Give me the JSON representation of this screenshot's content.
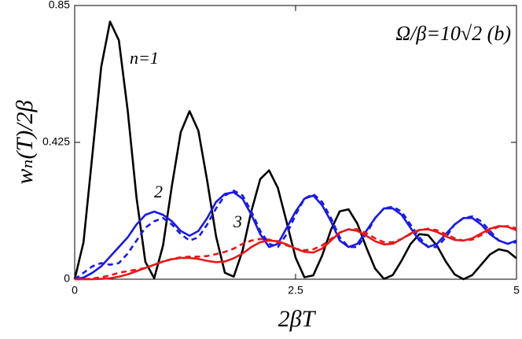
{
  "chart_data": {
    "type": "line",
    "annotation": "Ω/β=10√2  (b)",
    "xlabel": "2βT",
    "ylabel": "wₙ(T)/2β",
    "xlim": [
      0,
      5
    ],
    "ylim": [
      0,
      0.85
    ],
    "xticks": [
      0,
      2.5,
      5
    ],
    "yticks": [
      0,
      0.425,
      0.85
    ],
    "x": [
      0,
      0.1,
      0.2,
      0.3,
      0.4,
      0.5,
      0.6,
      0.7,
      0.8,
      0.9,
      1,
      1.1,
      1.2,
      1.3,
      1.4,
      1.5,
      1.6,
      1.7,
      1.8,
      1.9,
      2,
      2.1,
      2.2,
      2.3,
      2.4,
      2.5,
      2.6,
      2.7,
      2.8,
      2.9,
      3,
      3.1,
      3.2,
      3.3,
      3.4,
      3.5,
      3.6,
      3.7,
      3.8,
      3.9,
      4,
      4.1,
      4.2,
      4.3,
      4.4,
      4.5,
      4.6,
      4.7,
      4.8,
      4.9,
      5
    ],
    "series": [
      {
        "name": "n=1",
        "color": "#000000",
        "dashed": false,
        "values": [
          0,
          0.115,
          0.386,
          0.659,
          0.8,
          0.742,
          0.524,
          0.253,
          0.054,
          0.003,
          0.105,
          0.29,
          0.456,
          0.522,
          0.461,
          0.305,
          0.133,
          0.02,
          0.008,
          0.089,
          0.212,
          0.311,
          0.338,
          0.283,
          0.176,
          0.067,
          0.006,
          0.012,
          0.073,
          0.153,
          0.211,
          0.217,
          0.172,
          0.099,
          0.033,
          0.001,
          0.013,
          0.058,
          0.109,
          0.14,
          0.137,
          0.104,
          0.055,
          0.015,
          0,
          0.013,
          0.045,
          0.077,
          0.093,
          0.087,
          0.065
        ]
      },
      {
        "name": "2",
        "color": "#1a1ae6",
        "dashed": false,
        "values": [
          0,
          0.005,
          0.02,
          0.04,
          0.07,
          0.1,
          0.13,
          0.17,
          0.2,
          0.21,
          0.2,
          0.18,
          0.15,
          0.135,
          0.15,
          0.19,
          0.24,
          0.265,
          0.27,
          0.25,
          0.2,
          0.14,
          0.1,
          0.11,
          0.16,
          0.21,
          0.25,
          0.26,
          0.23,
          0.18,
          0.12,
          0.1,
          0.11,
          0.15,
          0.19,
          0.22,
          0.22,
          0.2,
          0.16,
          0.12,
          0.1,
          0.11,
          0.14,
          0.17,
          0.19,
          0.19,
          0.17,
          0.14,
          0.12,
          0.11,
          0.12
        ]
      },
      {
        "color": "#1a1ae6",
        "dashed": true,
        "values": [
          0,
          0.02,
          0.04,
          0.05,
          0.045,
          0.05,
          0.08,
          0.12,
          0.16,
          0.18,
          0.19,
          0.17,
          0.14,
          0.12,
          0.13,
          0.17,
          0.22,
          0.26,
          0.275,
          0.26,
          0.21,
          0.15,
          0.11,
          0.1,
          0.14,
          0.2,
          0.25,
          0.265,
          0.24,
          0.19,
          0.13,
          0.1,
          0.1,
          0.14,
          0.19,
          0.22,
          0.225,
          0.21,
          0.17,
          0.13,
          0.1,
          0.1,
          0.13,
          0.17,
          0.19,
          0.195,
          0.18,
          0.15,
          0.12,
          0.11,
          0.115
        ]
      },
      {
        "name": "3",
        "color": "#e61a1a",
        "dashed": false,
        "values": [
          0,
          0,
          0,
          0.001,
          0.003,
          0.008,
          0.015,
          0.025,
          0.035,
          0.045,
          0.055,
          0.062,
          0.066,
          0.066,
          0.063,
          0.057,
          0.053,
          0.055,
          0.065,
          0.08,
          0.1,
          0.115,
          0.12,
          0.118,
          0.108,
          0.095,
          0.085,
          0.083,
          0.095,
          0.12,
          0.145,
          0.155,
          0.15,
          0.135,
          0.118,
          0.108,
          0.11,
          0.125,
          0.142,
          0.153,
          0.155,
          0.147,
          0.133,
          0.122,
          0.12,
          0.127,
          0.142,
          0.157,
          0.165,
          0.163,
          0.152
        ]
      },
      {
        "color": "#e61a1a",
        "dashed": true,
        "values": [
          0,
          0,
          0.002,
          0.006,
          0.012,
          0.02,
          0.025,
          0.03,
          0.035,
          0.045,
          0.055,
          0.063,
          0.068,
          0.07,
          0.07,
          0.072,
          0.078,
          0.085,
          0.095,
          0.11,
          0.12,
          0.125,
          0.123,
          0.115,
          0.105,
          0.095,
          0.09,
          0.093,
          0.105,
          0.125,
          0.145,
          0.155,
          0.155,
          0.143,
          0.127,
          0.115,
          0.115,
          0.125,
          0.14,
          0.152,
          0.157,
          0.152,
          0.14,
          0.127,
          0.12,
          0.123,
          0.137,
          0.152,
          0.163,
          0.165,
          0.158
        ]
      }
    ]
  }
}
